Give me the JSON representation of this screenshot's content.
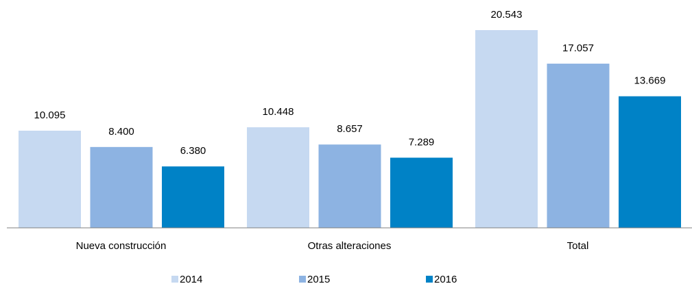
{
  "chart_data": {
    "type": "bar",
    "categories": [
      "Nueva construcción",
      "Otras alteraciones",
      "Total"
    ],
    "series": [
      {
        "name": "2014",
        "color": "#c6d9f1",
        "values": [
          10095,
          10448,
          20543
        ],
        "value_labels": [
          "10.095",
          "10.448",
          "20.543"
        ]
      },
      {
        "name": "2015",
        "color": "#8db3e2",
        "values": [
          8400,
          8657,
          17057
        ],
        "value_labels": [
          "8.400",
          "8.657",
          "17.057"
        ]
      },
      {
        "name": "2016",
        "color": "#0082c6",
        "values": [
          6380,
          7289,
          13669
        ],
        "value_labels": [
          "6.380",
          "7.289",
          "13.669"
        ]
      }
    ],
    "legend": "bottom"
  }
}
